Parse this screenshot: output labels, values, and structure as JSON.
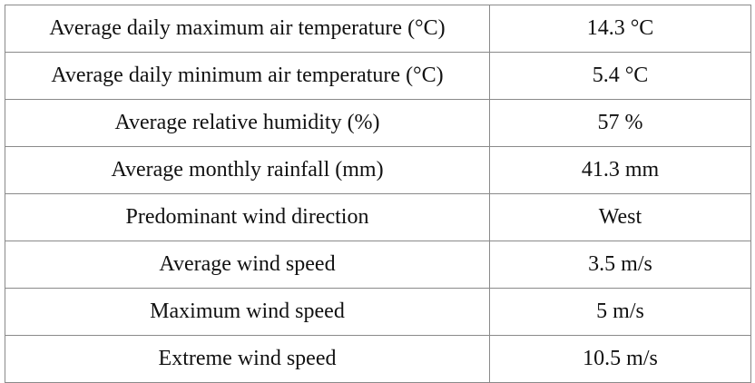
{
  "table": {
    "rows": [
      [
        "Average daily maximum air temperature (°C)",
        "14.3 °C"
      ],
      [
        "Average daily minimum air temperature (°C)",
        "5.4 °C"
      ],
      [
        "Average relative humidity (%)",
        "57 %"
      ],
      [
        "Average monthly rainfall (mm)",
        "41.3 mm"
      ],
      [
        "Predominant wind direction",
        "West"
      ],
      [
        "Average wind speed",
        "3.5 m/s"
      ],
      [
        "Maximum wind speed",
        "5 m/s"
      ],
      [
        "Extreme wind speed",
        "10.5 m/s"
      ]
    ]
  }
}
